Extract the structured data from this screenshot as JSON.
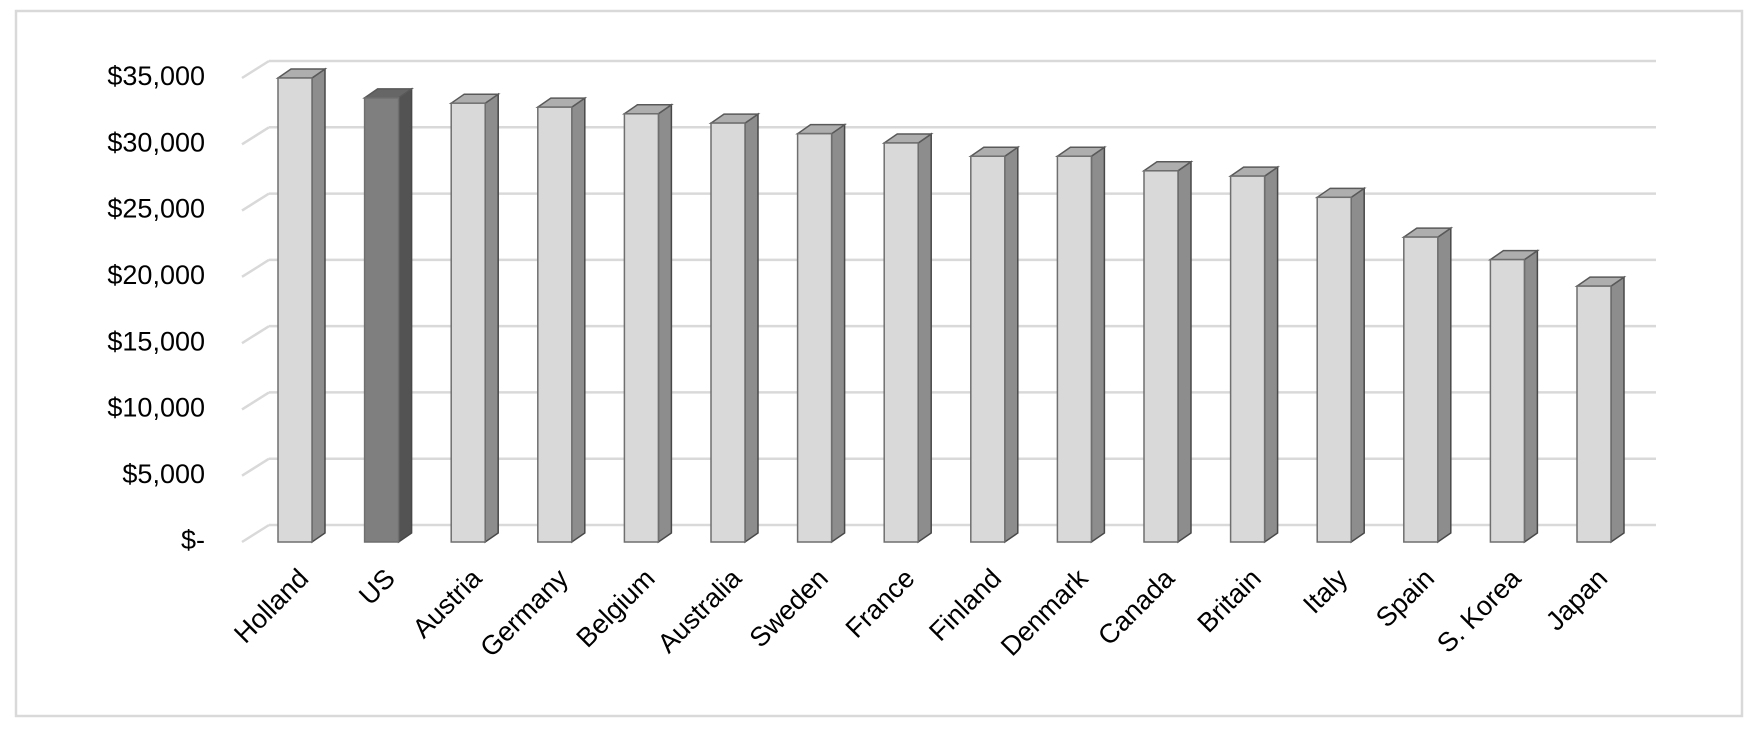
{
  "chart_data": {
    "type": "bar3d",
    "categories": [
      "Holland",
      "US",
      "Austria",
      "Germany",
      "Belgium",
      "Australia",
      "Sweden",
      "France",
      "Finland",
      "Denmark",
      "Canada",
      "Britain",
      "Italy",
      "Spain",
      "S. Korea",
      "Japan"
    ],
    "values": [
      35000,
      33500,
      33100,
      32800,
      32300,
      31600,
      30800,
      30100,
      29100,
      29100,
      28000,
      27600,
      26000,
      23000,
      21300,
      19300
    ],
    "colors": [
      "#d9d9d9",
      "#7f7f7f",
      "#d9d9d9",
      "#d9d9d9",
      "#d9d9d9",
      "#d9d9d9",
      "#d9d9d9",
      "#d9d9d9",
      "#d9d9d9",
      "#d9d9d9",
      "#d9d9d9",
      "#d9d9d9",
      "#d9d9d9",
      "#d9d9d9",
      "#d9d9d9",
      "#d9d9d9"
    ],
    "ylim": [
      0,
      35000
    ],
    "yticks": [
      {
        "value": 0,
        "label": "$-"
      },
      {
        "value": 5000,
        "label": "$5,000"
      },
      {
        "value": 10000,
        "label": "$10,000"
      },
      {
        "value": 15000,
        "label": "$15,000"
      },
      {
        "value": 20000,
        "label": "$20,000"
      },
      {
        "value": 25000,
        "label": "$25,000"
      },
      {
        "value": 30000,
        "label": "$30,000"
      },
      {
        "value": 35000,
        "label": "$35,000"
      }
    ],
    "grid": true
  }
}
